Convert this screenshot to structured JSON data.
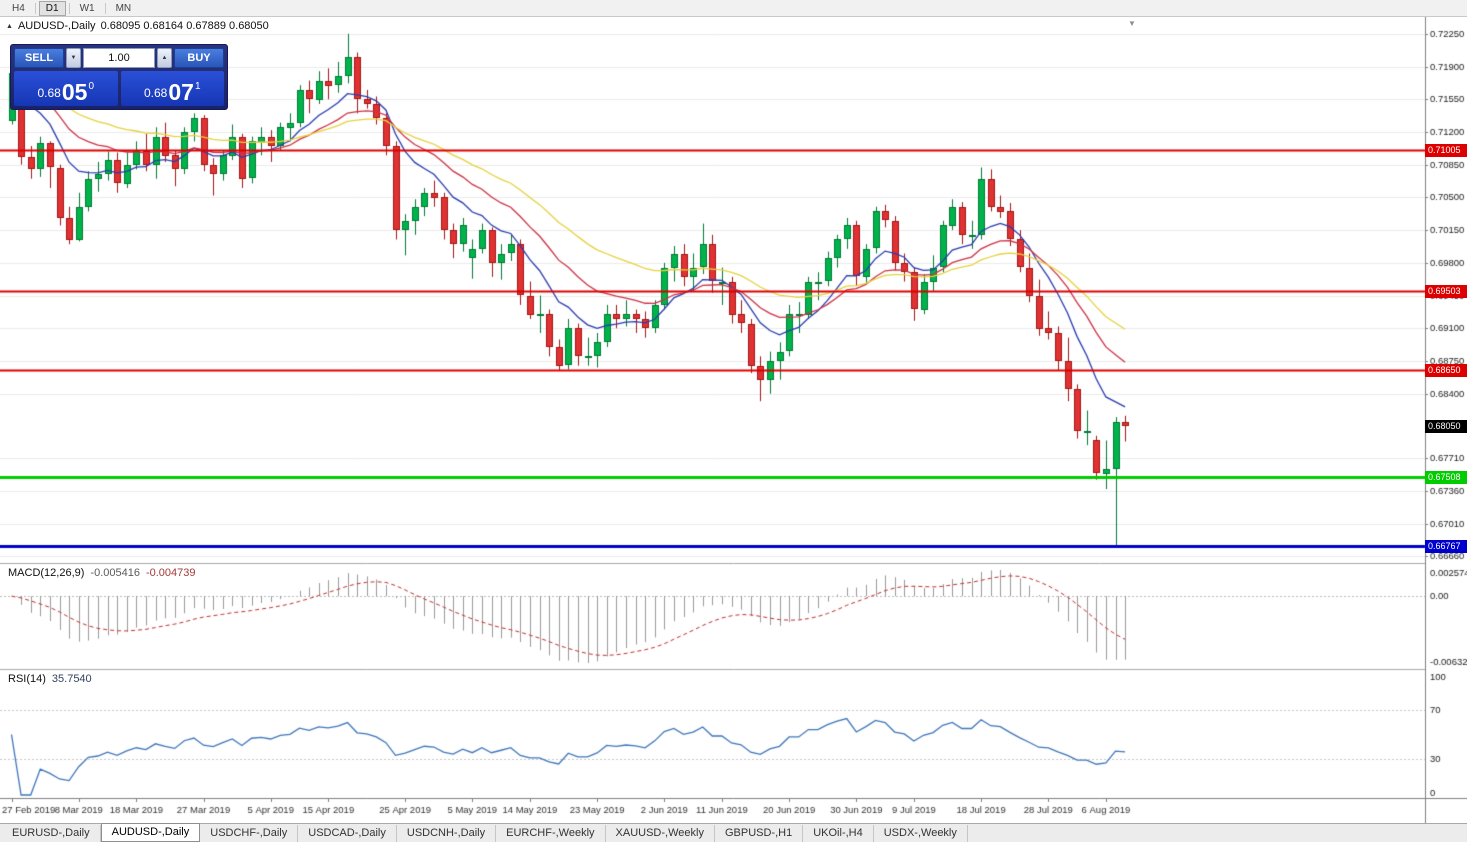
{
  "toolbar": {
    "periods": [
      {
        "label": "H4",
        "active": false
      },
      {
        "label": "D1",
        "active": true
      },
      {
        "label": "W1",
        "active": false
      },
      {
        "label": "MN",
        "active": false
      }
    ]
  },
  "chart": {
    "title": "AUDUSD-,Daily",
    "ohlc": "0.68095 0.68164 0.67889 0.68050"
  },
  "trade_panel": {
    "sell_label": "SELL",
    "buy_label": "BUY",
    "volume": "1.00",
    "sell_price": {
      "base": "0.68",
      "big": "05",
      "sup": "0"
    },
    "buy_price": {
      "base": "0.68",
      "big": "07",
      "sup": "1"
    }
  },
  "indicators": {
    "macd": {
      "label": "MACD(12,26,9)",
      "value_main": "-0.005416",
      "value_signal": "-0.004739"
    },
    "rsi": {
      "label": "RSI(14)",
      "value": "35.7540"
    }
  },
  "icons": {
    "title_marker": "▲",
    "shift_marker": "▼",
    "volume_down": "▼",
    "volume_up": "▲"
  },
  "bottom_tabs": [
    {
      "label": "EURUSD-,Daily",
      "active": false
    },
    {
      "label": "AUDUSD-,Daily",
      "active": true
    },
    {
      "label": "USDCHF-,Daily",
      "active": false
    },
    {
      "label": "USDCAD-,Daily",
      "active": false
    },
    {
      "label": "USDCNH-,Daily",
      "active": false
    },
    {
      "label": "EURCHF-,Weekly",
      "active": false
    },
    {
      "label": "XAUUSD-,Weekly",
      "active": false
    },
    {
      "label": "GBPUSD-,H1",
      "active": false
    },
    {
      "label": "UKOil-,H4",
      "active": false
    },
    {
      "label": "USDX-,Weekly",
      "active": false
    }
  ],
  "chart_data": {
    "type": "candlestick",
    "symbol": "AUDUSD-,Daily",
    "price": {
      "ylim": [
        0.666,
        0.7243
      ],
      "yticks": [
        0.7225,
        0.719,
        0.7155,
        0.712,
        0.7085,
        0.705,
        0.7015,
        0.698,
        0.6945,
        0.691,
        0.6875,
        0.684,
        0.6771,
        0.6736,
        0.6701,
        0.6666
      ],
      "hlines": [
        {
          "value": 0.71005,
          "label": "0.71005",
          "color": "#dd0000",
          "width": 2
        },
        {
          "value": 0.69503,
          "label": "0.69503",
          "color": "#dd0000",
          "width": 2
        },
        {
          "value": 0.6865,
          "label": "0.68650",
          "color": "#dd0000",
          "width": 2
        },
        {
          "value": 0.67508,
          "label": "0.67508",
          "color": "#00cc00",
          "width": 3
        },
        {
          "value": 0.66767,
          "label": "0.66767",
          "color": "#0000cc",
          "width": 3
        }
      ],
      "current_price": {
        "value": 0.6805,
        "label": "0.68050",
        "color": "#000000"
      },
      "ma_lines": [
        {
          "name": "fast",
          "type": "ema",
          "period": 9,
          "color": "#2a3cb0"
        },
        {
          "name": "medium",
          "type": "ema",
          "period": 18,
          "color": "#cc3344"
        },
        {
          "name": "slow",
          "type": "ema",
          "period": 32,
          "color": "#e6d23f"
        }
      ],
      "up_color": "#00b34a",
      "down_color": "#e03232",
      "candles": [
        [
          0.7132,
          0.719,
          0.7128,
          0.7183
        ],
        [
          0.7183,
          0.7187,
          0.7085,
          0.7093
        ],
        [
          0.7093,
          0.7105,
          0.707,
          0.708
        ],
        [
          0.708,
          0.7115,
          0.7072,
          0.7108
        ],
        [
          0.7108,
          0.711,
          0.706,
          0.7082
        ],
        [
          0.7082,
          0.7085,
          0.702,
          0.7028
        ],
        [
          0.7028,
          0.704,
          0.7,
          0.7005
        ],
        [
          0.7005,
          0.7055,
          0.7003,
          0.704
        ],
        [
          0.704,
          0.7078,
          0.7035,
          0.707
        ],
        [
          0.707,
          0.7088,
          0.7056,
          0.7075
        ],
        [
          0.7075,
          0.7099,
          0.7068,
          0.709
        ],
        [
          0.709,
          0.7098,
          0.7055,
          0.7065
        ],
        [
          0.7065,
          0.7098,
          0.706,
          0.7085
        ],
        [
          0.7085,
          0.711,
          0.708,
          0.71
        ],
        [
          0.71,
          0.7118,
          0.7078,
          0.7085
        ],
        [
          0.7085,
          0.7125,
          0.707,
          0.7115
        ],
        [
          0.7115,
          0.713,
          0.7088,
          0.7095
        ],
        [
          0.7095,
          0.71,
          0.7062,
          0.708
        ],
        [
          0.708,
          0.7125,
          0.7075,
          0.712
        ],
        [
          0.712,
          0.714,
          0.711,
          0.7135
        ],
        [
          0.7135,
          0.7138,
          0.7078,
          0.7085
        ],
        [
          0.7085,
          0.7092,
          0.7052,
          0.7075
        ],
        [
          0.7075,
          0.71,
          0.7068,
          0.7095
        ],
        [
          0.7095,
          0.7128,
          0.709,
          0.7115
        ],
        [
          0.7115,
          0.7118,
          0.706,
          0.707
        ],
        [
          0.707,
          0.7115,
          0.7065,
          0.711
        ],
        [
          0.711,
          0.7125,
          0.7095,
          0.7115
        ],
        [
          0.7115,
          0.7122,
          0.7088,
          0.7105
        ],
        [
          0.7105,
          0.713,
          0.71,
          0.7125
        ],
        [
          0.7125,
          0.714,
          0.711,
          0.713
        ],
        [
          0.713,
          0.717,
          0.7125,
          0.7165
        ],
        [
          0.7165,
          0.7175,
          0.714,
          0.7155
        ],
        [
          0.7155,
          0.7185,
          0.715,
          0.7175
        ],
        [
          0.7175,
          0.7188,
          0.7155,
          0.717
        ],
        [
          0.717,
          0.7195,
          0.7162,
          0.718
        ],
        [
          0.718,
          0.7225,
          0.7172,
          0.72
        ],
        [
          0.72,
          0.7205,
          0.714,
          0.7155
        ],
        [
          0.7155,
          0.7165,
          0.7145,
          0.715
        ],
        [
          0.715,
          0.7158,
          0.7128,
          0.7135
        ],
        [
          0.7135,
          0.714,
          0.7095,
          0.7105
        ],
        [
          0.7105,
          0.711,
          0.7005,
          0.7015
        ],
        [
          0.7015,
          0.7032,
          0.6988,
          0.7025
        ],
        [
          0.7025,
          0.7048,
          0.701,
          0.704
        ],
        [
          0.704,
          0.706,
          0.703,
          0.7055
        ],
        [
          0.7055,
          0.7068,
          0.704,
          0.705
        ],
        [
          0.705,
          0.7055,
          0.7005,
          0.7015
        ],
        [
          0.7015,
          0.7022,
          0.6985,
          0.7
        ],
        [
          0.7,
          0.7028,
          0.6992,
          0.702
        ],
        [
          0.6985,
          0.7005,
          0.6963,
          0.6995
        ],
        [
          0.6995,
          0.7022,
          0.699,
          0.7015
        ],
        [
          0.7015,
          0.7018,
          0.6965,
          0.698
        ],
        [
          0.698,
          0.7,
          0.6962,
          0.699
        ],
        [
          0.699,
          0.701,
          0.6982,
          0.7
        ],
        [
          0.7,
          0.7005,
          0.6935,
          0.6945
        ],
        [
          0.6945,
          0.696,
          0.692,
          0.6925
        ],
        [
          0.6925,
          0.6945,
          0.6905,
          0.6925
        ],
        [
          0.6925,
          0.693,
          0.688,
          0.689
        ],
        [
          0.689,
          0.6898,
          0.6865,
          0.687
        ],
        [
          0.687,
          0.692,
          0.6866,
          0.691
        ],
        [
          0.691,
          0.6915,
          0.687,
          0.688
        ],
        [
          0.688,
          0.69,
          0.687,
          0.688
        ],
        [
          0.688,
          0.6905,
          0.6868,
          0.6895
        ],
        [
          0.6895,
          0.6935,
          0.689,
          0.6925
        ],
        [
          0.6925,
          0.6935,
          0.691,
          0.692
        ],
        [
          0.692,
          0.694,
          0.6912,
          0.6925
        ],
        [
          0.6925,
          0.693,
          0.6905,
          0.692
        ],
        [
          0.692,
          0.6928,
          0.69,
          0.691
        ],
        [
          0.691,
          0.694,
          0.6905,
          0.6935
        ],
        [
          0.6935,
          0.698,
          0.693,
          0.6975
        ],
        [
          0.6975,
          0.6998,
          0.696,
          0.699
        ],
        [
          0.699,
          0.7,
          0.6955,
          0.6965
        ],
        [
          0.6965,
          0.699,
          0.695,
          0.6975
        ],
        [
          0.6975,
          0.7022,
          0.6968,
          0.7
        ],
        [
          0.7,
          0.701,
          0.6948,
          0.696
        ],
        [
          0.696,
          0.6975,
          0.6935,
          0.696
        ],
        [
          0.696,
          0.6965,
          0.6915,
          0.6925
        ],
        [
          0.6925,
          0.694,
          0.6905,
          0.6915
        ],
        [
          0.6915,
          0.692,
          0.6862,
          0.687
        ],
        [
          0.687,
          0.688,
          0.6832,
          0.6855
        ],
        [
          0.6855,
          0.6885,
          0.684,
          0.6875
        ],
        [
          0.6875,
          0.6895,
          0.6855,
          0.6885
        ],
        [
          0.6885,
          0.6935,
          0.688,
          0.6925
        ],
        [
          0.6925,
          0.6938,
          0.6905,
          0.6925
        ],
        [
          0.6925,
          0.6965,
          0.692,
          0.696
        ],
        [
          0.696,
          0.697,
          0.694,
          0.696
        ],
        [
          0.696,
          0.6992,
          0.6955,
          0.6985
        ],
        [
          0.6985,
          0.701,
          0.6975,
          0.7005
        ],
        [
          0.7005,
          0.7028,
          0.6995,
          0.702
        ],
        [
          0.702,
          0.7025,
          0.6955,
          0.6965
        ],
        [
          0.6965,
          0.7,
          0.6958,
          0.6995
        ],
        [
          0.6995,
          0.704,
          0.699,
          0.7035
        ],
        [
          0.7035,
          0.7042,
          0.7018,
          0.7025
        ],
        [
          0.7025,
          0.703,
          0.6972,
          0.698
        ],
        [
          0.698,
          0.699,
          0.696,
          0.697
        ],
        [
          0.697,
          0.6975,
          0.6918,
          0.693
        ],
        [
          0.693,
          0.6968,
          0.6925,
          0.696
        ],
        [
          0.696,
          0.6988,
          0.695,
          0.6975
        ],
        [
          0.6975,
          0.7025,
          0.697,
          0.702
        ],
        [
          0.702,
          0.7048,
          0.7015,
          0.704
        ],
        [
          0.704,
          0.7045,
          0.7,
          0.701
        ],
        [
          0.701,
          0.7025,
          0.6995,
          0.701
        ],
        [
          0.701,
          0.7082,
          0.7005,
          0.707
        ],
        [
          0.707,
          0.708,
          0.7035,
          0.704
        ],
        [
          0.704,
          0.7052,
          0.7028,
          0.7035
        ],
        [
          0.7035,
          0.7044,
          0.6998,
          0.7005
        ],
        [
          0.7005,
          0.7015,
          0.697,
          0.6975
        ],
        [
          0.6975,
          0.699,
          0.6938,
          0.6945
        ],
        [
          0.6945,
          0.6962,
          0.6902,
          0.691
        ],
        [
          0.691,
          0.6928,
          0.6898,
          0.6905
        ],
        [
          0.6905,
          0.6912,
          0.6865,
          0.6875
        ],
        [
          0.6875,
          0.69,
          0.6832,
          0.6845
        ],
        [
          0.6845,
          0.685,
          0.6792,
          0.68
        ],
        [
          0.68,
          0.6822,
          0.6785,
          0.68
        ],
        [
          0.679,
          0.6795,
          0.6748,
          0.6755
        ],
        [
          0.6755,
          0.679,
          0.6738,
          0.676
        ],
        [
          0.676,
          0.6815,
          0.6677,
          0.681
        ],
        [
          0.68095,
          0.68164,
          0.67889,
          0.6805
        ]
      ]
    },
    "x_ticks": [
      {
        "i": 0,
        "label": "27 Feb 2019"
      },
      {
        "i": 7,
        "label": "8 Mar 2019"
      },
      {
        "i": 13,
        "label": "18 Mar 2019"
      },
      {
        "i": 20,
        "label": "27 Mar 2019"
      },
      {
        "i": 27,
        "label": "5 Apr 2019"
      },
      {
        "i": 33,
        "label": "15 Apr 2019"
      },
      {
        "i": 41,
        "label": "25 Apr 2019"
      },
      {
        "i": 48,
        "label": "5 May 2019"
      },
      {
        "i": 54,
        "label": "14 May 2019"
      },
      {
        "i": 61,
        "label": "23 May 2019"
      },
      {
        "i": 68,
        "label": "2 Jun 2019"
      },
      {
        "i": 74,
        "label": "11 Jun 2019"
      },
      {
        "i": 81,
        "label": "20 Jun 2019"
      },
      {
        "i": 88,
        "label": "30 Jun 2019"
      },
      {
        "i": 94,
        "label": "9 Jul 2019"
      },
      {
        "i": 101,
        "label": "18 Jul 2019"
      },
      {
        "i": 108,
        "label": "28 Jul 2019"
      },
      {
        "i": 114,
        "label": "6 Aug 2019"
      }
    ],
    "macd": {
      "fast": 12,
      "slow": 26,
      "signal_period": 9,
      "main_color": "#9a9a9a",
      "signal_color": "#c03030",
      "ymax_label": "0.002574",
      "zero_label": "0.00",
      "ymin_label": "-0.006326",
      "current_main": -0.005416,
      "current_signal": -0.004739
    },
    "rsi": {
      "period": 14,
      "color": "#3f76ba",
      "levels": [
        70,
        30
      ],
      "axis_labels": [
        100,
        70,
        30,
        0
      ],
      "current": 35.754
    }
  }
}
